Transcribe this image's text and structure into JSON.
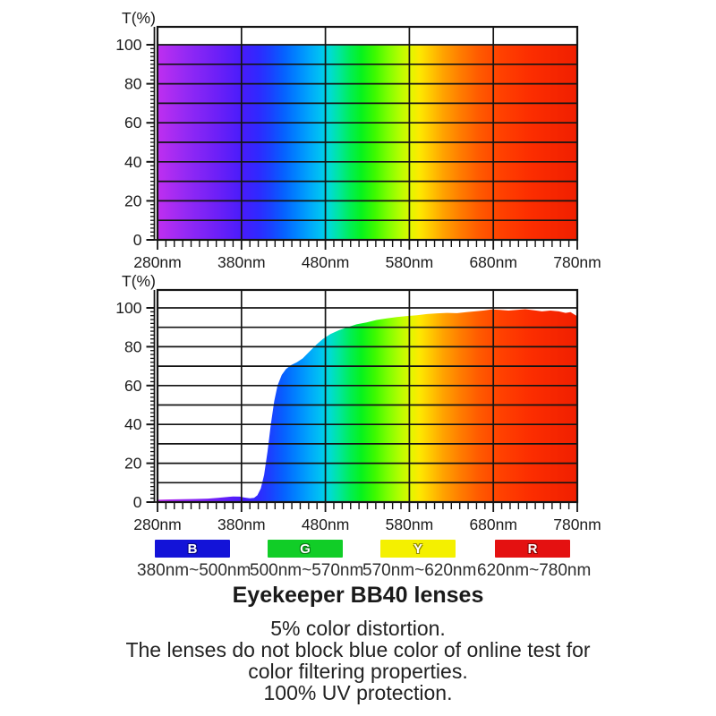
{
  "page": {
    "background": "#ffffff"
  },
  "chart_data": [
    {
      "id": "full-spectrum",
      "type": "area",
      "title": "",
      "ylabel": "T(%)",
      "xlabel": "",
      "x_range": [
        280,
        780
      ],
      "y_range": [
        0,
        100
      ],
      "x_ticks": [
        280,
        380,
        480,
        580,
        680,
        780
      ],
      "x_tick_labels": [
        "280nm",
        "380nm",
        "480nm",
        "580nm",
        "680nm",
        "780nm"
      ],
      "y_ticks": [
        0,
        20,
        40,
        60,
        80,
        100
      ],
      "grid": {
        "x_major_step": 100,
        "x_minor_step": 10,
        "y_major_step": 10,
        "y_minor_step": 2,
        "grid_on": true
      },
      "legend_position": "none",
      "series": [
        {
          "name": "visible-light-spectrum",
          "x": [
            280,
            780
          ],
          "y": [
            100,
            100
          ]
        }
      ]
    },
    {
      "id": "bb40-lens-transmission",
      "type": "area",
      "title": "",
      "ylabel": "T(%)",
      "xlabel": "",
      "x_range": [
        280,
        780
      ],
      "y_range": [
        0,
        100
      ],
      "x_ticks": [
        280,
        380,
        480,
        580,
        680,
        780
      ],
      "x_tick_labels": [
        "280nm",
        "380nm",
        "480nm",
        "580nm",
        "680nm",
        "780nm"
      ],
      "y_ticks": [
        0,
        20,
        40,
        60,
        80,
        100
      ],
      "grid": {
        "x_major_step": 100,
        "x_minor_step": 10,
        "y_major_step": 10,
        "y_minor_step": 2,
        "grid_on": true
      },
      "legend_position": "none",
      "series": [
        {
          "name": "lens-transmission",
          "x": [
            280,
            295,
            310,
            325,
            340,
            352,
            362,
            370,
            378,
            384,
            390,
            395,
            399,
            403,
            407,
            411,
            415,
            419,
            423,
            428,
            433,
            439,
            446,
            453,
            461,
            469,
            477,
            486,
            496,
            506,
            517,
            529,
            541,
            553,
            565,
            577,
            589,
            601,
            613,
            625,
            637,
            648,
            658,
            668,
            678,
            688,
            698,
            708,
            718,
            728,
            738,
            748,
            758,
            766,
            772,
            778,
            780
          ],
          "y": [
            1.2,
            1.4,
            1.5,
            1.6,
            1.8,
            2.2,
            2.6,
            2.9,
            2.8,
            2.3,
            2.0,
            2.2,
            3.5,
            7,
            14,
            26,
            40,
            52,
            60,
            65.5,
            68.5,
            70.5,
            72,
            74,
            77.5,
            81,
            84,
            86.5,
            88.5,
            90,
            91.5,
            92.5,
            93.8,
            94.6,
            95.3,
            95.8,
            96.2,
            96.8,
            97.2,
            97.4,
            97.3,
            97.8,
            98.2,
            98.6,
            99.2,
            99.0,
            98.6,
            99.0,
            99.3,
            98.8,
            98.2,
            98.6,
            98.2,
            97.4,
            97.8,
            96.2,
            95.8
          ]
        }
      ]
    }
  ],
  "spectrum_gradient": [
    {
      "nm": 280,
      "color": "#bf2ff0"
    },
    {
      "nm": 315,
      "color": "#9329f4"
    },
    {
      "nm": 350,
      "color": "#6e20f7"
    },
    {
      "nm": 382,
      "color": "#471cfb"
    },
    {
      "nm": 400,
      "color": "#2f29ff"
    },
    {
      "nm": 415,
      "color": "#1a41ff"
    },
    {
      "nm": 430,
      "color": "#0660ff"
    },
    {
      "nm": 445,
      "color": "#0082ff"
    },
    {
      "nm": 460,
      "color": "#00a4fc"
    },
    {
      "nm": 474,
      "color": "#00c2f2"
    },
    {
      "nm": 486,
      "color": "#00dcd0"
    },
    {
      "nm": 497,
      "color": "#00e79a"
    },
    {
      "nm": 509,
      "color": "#00ee58"
    },
    {
      "nm": 523,
      "color": "#06f31c"
    },
    {
      "nm": 539,
      "color": "#3cfa00"
    },
    {
      "nm": 555,
      "color": "#7fff00"
    },
    {
      "nm": 569,
      "color": "#b4fe00"
    },
    {
      "nm": 581,
      "color": "#e0f700"
    },
    {
      "nm": 592,
      "color": "#fde900"
    },
    {
      "nm": 605,
      "color": "#ffc900"
    },
    {
      "nm": 620,
      "color": "#ffa300"
    },
    {
      "nm": 640,
      "color": "#ff7d00"
    },
    {
      "nm": 663,
      "color": "#ff5a00"
    },
    {
      "nm": 690,
      "color": "#ff4000"
    },
    {
      "nm": 725,
      "color": "#fc2d00"
    },
    {
      "nm": 780,
      "color": "#f01f00"
    }
  ],
  "legend": {
    "items": [
      {
        "letter": "B",
        "range": "380nm~500nm",
        "color": "#1313d8",
        "outline": "#060684"
      },
      {
        "letter": "G",
        "range": "500nm~570nm",
        "color": "#11cd27",
        "outline": "#067a12"
      },
      {
        "letter": "Y",
        "range": "570nm~620nm",
        "color": "#f4f000",
        "outline": "#8f8a00"
      },
      {
        "letter": "R",
        "range": "620nm~780nm",
        "color": "#e41111",
        "outline": "#8a0505"
      }
    ]
  },
  "caption": {
    "title": "Eyekeeper BB40 lenses",
    "line1": "5% color distortion.",
    "line2": "The lenses do not block blue color of online test for",
    "line3": "color filtering properties.",
    "line4": "100% UV protection."
  }
}
